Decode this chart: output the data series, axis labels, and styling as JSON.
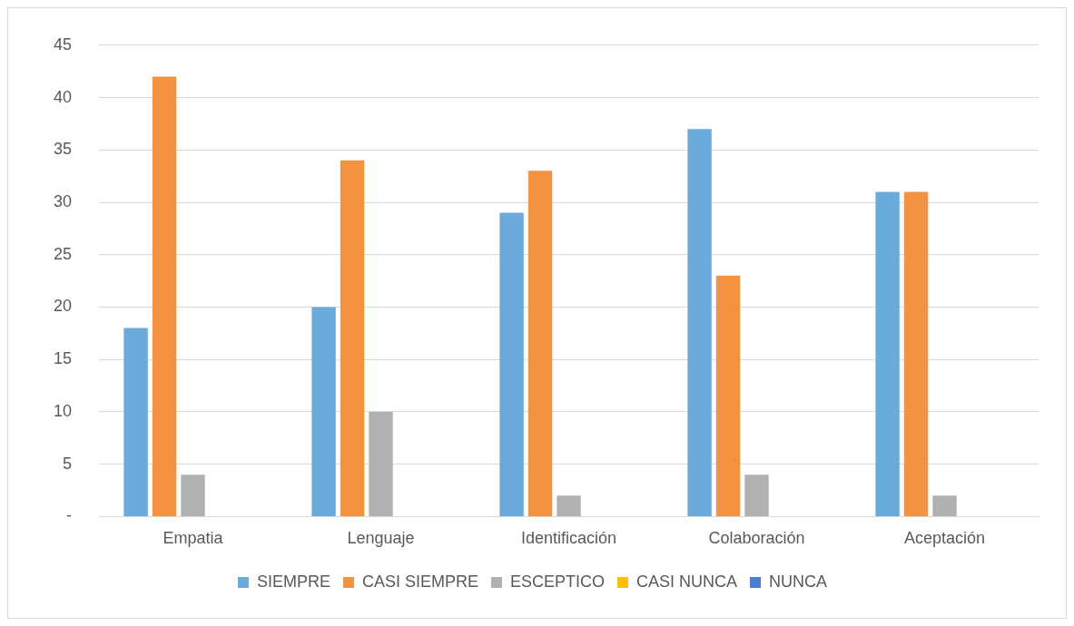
{
  "chart_data": {
    "type": "bar",
    "categories": [
      "Empatia",
      "Lenguaje",
      "Identificación",
      "Colaboración",
      "Aceptación"
    ],
    "series": [
      {
        "name": "SIEMPRE",
        "color": "#6aabdc",
        "values": [
          18,
          20,
          29,
          37,
          31
        ]
      },
      {
        "name": "CASI SIEMPRE",
        "color": "#f39241",
        "values": [
          42,
          34,
          33,
          23,
          31
        ]
      },
      {
        "name": "ESCEPTICO",
        "color": "#b1b1b1",
        "values": [
          4,
          10,
          2,
          4,
          2
        ]
      },
      {
        "name": "CASI NUNCA",
        "color": "#ffc000",
        "values": [
          0,
          0,
          0,
          0,
          0
        ]
      },
      {
        "name": "NUNCA",
        "color": "#4a7fcf",
        "values": [
          0,
          0,
          0,
          0,
          0
        ]
      }
    ],
    "ylim": [
      0,
      45
    ],
    "yticks": [
      {
        "value": 0,
        "label": "-"
      },
      5,
      10,
      15,
      20,
      25,
      30,
      35,
      40,
      45
    ],
    "grid": "y",
    "legend": "bottom"
  }
}
